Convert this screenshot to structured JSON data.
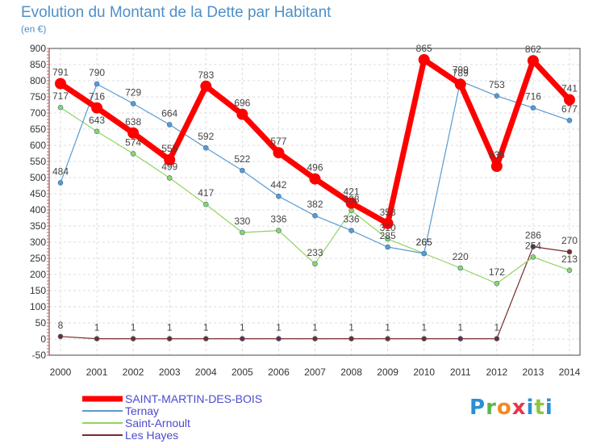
{
  "chart_data": {
    "type": "line",
    "title": "Evolution du Montant de la Dette par Habitant",
    "subtitle": "(en €)",
    "x": [
      "2000",
      "2001",
      "2002",
      "2003",
      "2004",
      "2005",
      "2006",
      "2007",
      "2008",
      "2009",
      "2010",
      "2011",
      "2012",
      "2013",
      "2014"
    ],
    "ylim": [
      -50,
      900
    ],
    "yticks": [
      -50,
      0,
      50,
      100,
      150,
      200,
      250,
      300,
      350,
      400,
      450,
      500,
      550,
      600,
      650,
      700,
      750,
      800,
      850,
      900
    ],
    "grid": true,
    "legend_position": "bottom-left",
    "series": [
      {
        "name": "SAINT-MARTIN-DES-BOIS",
        "color": "#ff0000",
        "values": [
          791,
          716,
          638,
          555,
          783,
          696,
          577,
          496,
          421,
          358,
          865,
          789,
          535,
          862,
          741
        ]
      },
      {
        "name": "Ternay",
        "color": "#5a9ad0",
        "values": [
          484,
          790,
          729,
          664,
          592,
          522,
          442,
          382,
          336,
          285,
          265,
          799,
          753,
          716,
          677
        ]
      },
      {
        "name": "Saint-Arnoult",
        "color": "#8fd460",
        "values": [
          717,
          643,
          574,
          499,
          417,
          330,
          336,
          233,
          398,
          310,
          265,
          220,
          172,
          254,
          213
        ]
      },
      {
        "name": "Les Hayes",
        "color": "#7a2a2a",
        "values": [
          8,
          1,
          1,
          1,
          1,
          1,
          1,
          1,
          1,
          1,
          1,
          1,
          1,
          286,
          270
        ]
      }
    ]
  },
  "logo": {
    "p": "P",
    "r": "r",
    "o": "o",
    "x": "x",
    "i": "i",
    "t": "t",
    "i2": "i"
  }
}
